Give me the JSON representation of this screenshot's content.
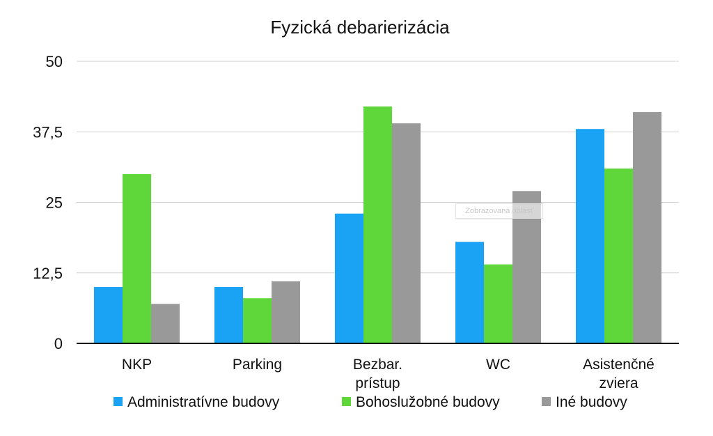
{
  "chart_data": {
    "type": "bar",
    "title": "Fyzická debarierizácia",
    "categories": [
      [
        "NKP"
      ],
      [
        "Parking"
      ],
      [
        "Bezbar.",
        "prístup"
      ],
      [
        "WC"
      ],
      [
        "Asistenčné",
        "zviera"
      ]
    ],
    "series": [
      {
        "name": "Administratívne budovy",
        "color": "#1aa3f5",
        "values": [
          10,
          10,
          23,
          18,
          38
        ]
      },
      {
        "name": "Bohoslužobné budovy",
        "color": "#5fd63a",
        "values": [
          30,
          8,
          42,
          14,
          31
        ]
      },
      {
        "name": "Iné budovy",
        "color": "#999999",
        "values": [
          7,
          11,
          39,
          27,
          41
        ]
      }
    ],
    "yticks": [
      "0",
      "12,5",
      "25",
      "37,5",
      "50"
    ],
    "ylim": [
      0,
      50
    ],
    "grid": true,
    "legend": "bottom",
    "xlabel": "",
    "ylabel": ""
  },
  "overlay": {
    "tooltip": "Zobrazovaná oblasť"
  }
}
